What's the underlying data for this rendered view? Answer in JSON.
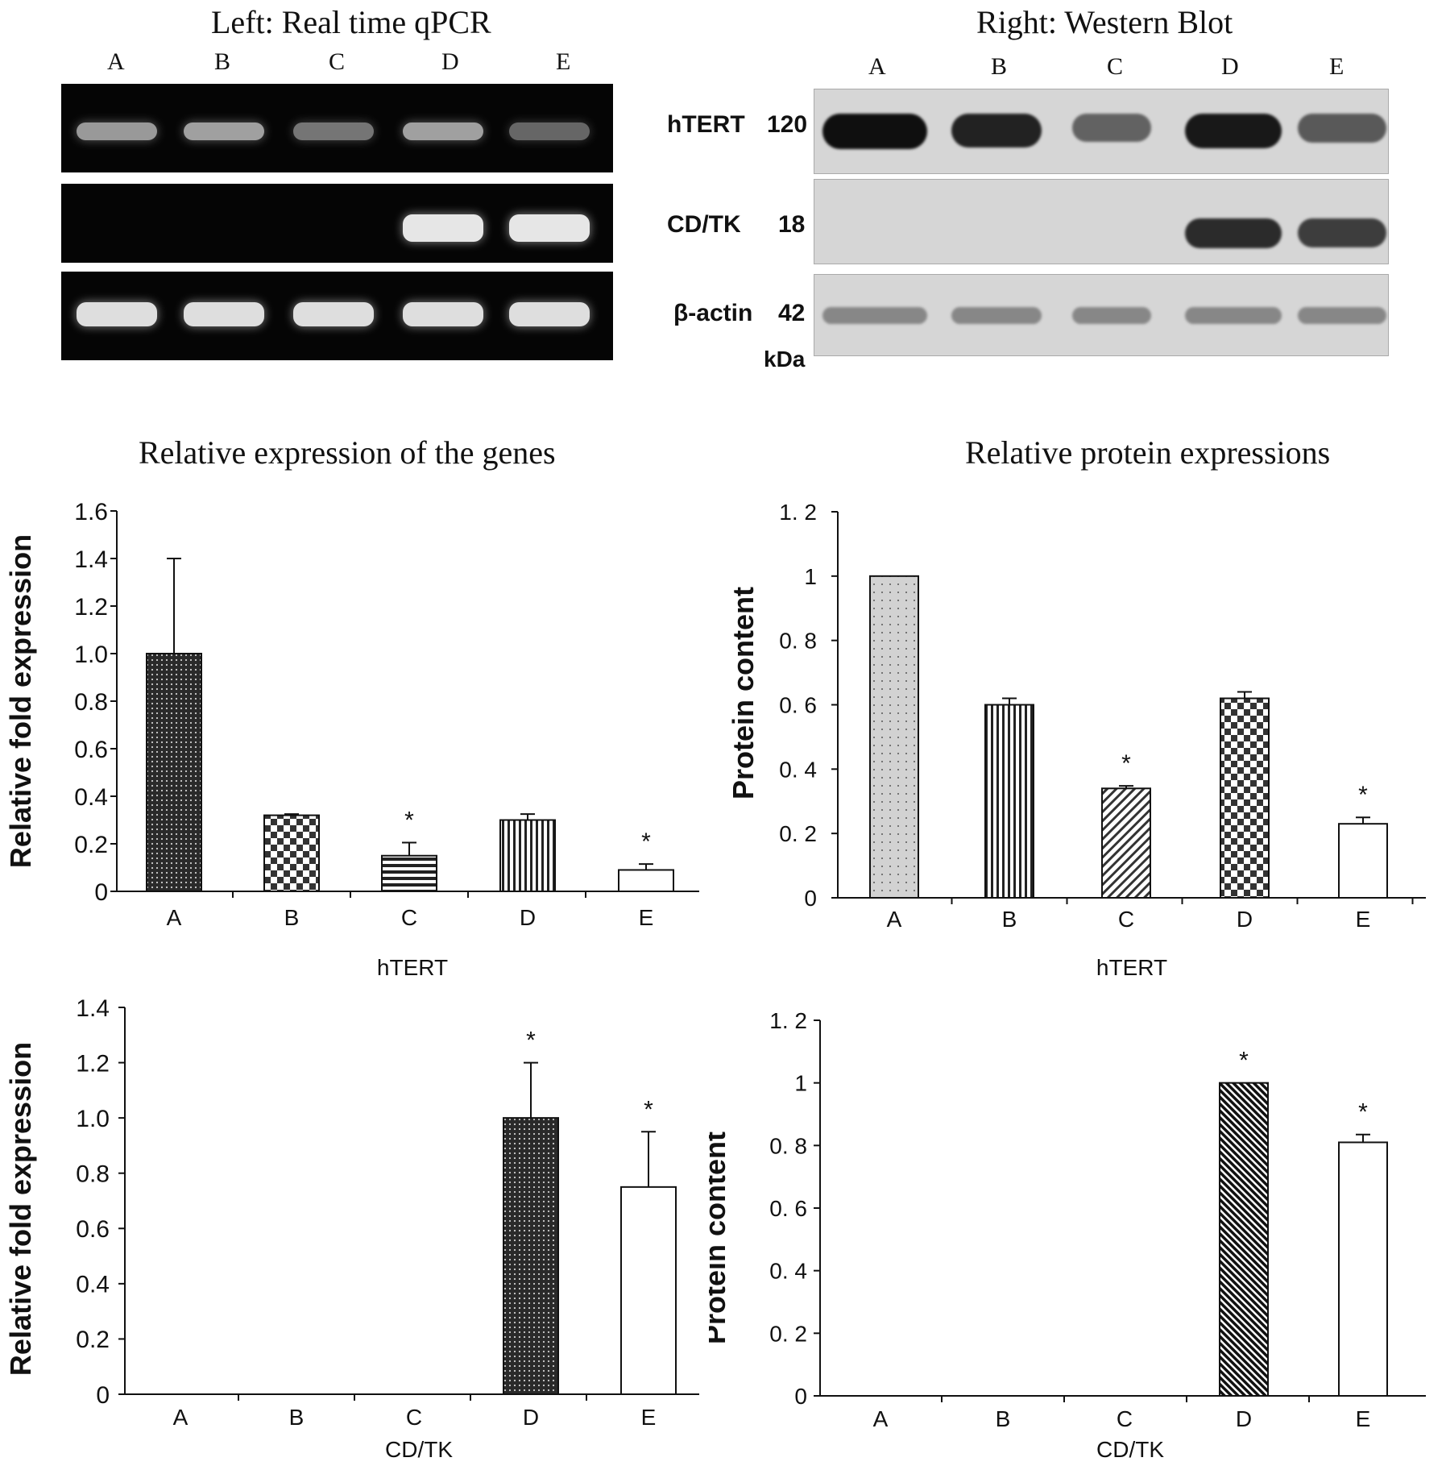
{
  "gel_panel": {
    "title": "Left: Real time qPCR",
    "lanes": [
      "A",
      "B",
      "C",
      "D",
      "E"
    ],
    "rows": [
      {
        "bands": [
          0.7,
          0.75,
          0.45,
          0.75,
          0.35
        ]
      },
      {
        "bands": [
          0,
          0,
          0,
          1,
          1
        ]
      },
      {
        "bands": [
          0.95,
          0.95,
          0.95,
          0.95,
          0.95
        ]
      }
    ]
  },
  "blot_panel": {
    "title": "Right: Western Blot",
    "lanes": [
      "A",
      "B",
      "C",
      "D",
      "E"
    ],
    "unit": "kDa",
    "rows": [
      {
        "name": "hTERT",
        "size": "120",
        "bands": [
          1,
          0.9,
          0.55,
          0.95,
          0.6
        ]
      },
      {
        "name": "CD/TK",
        "size": "18",
        "bands": [
          0,
          0,
          0,
          0.85,
          0.75
        ]
      },
      {
        "name": "β-actin",
        "size": "42",
        "bands": [
          0.35,
          0.35,
          0.35,
          0.35,
          0.35
        ]
      }
    ]
  },
  "section_titles": {
    "genes": "Relative expression of the genes",
    "proteins": "Relative protein expressions"
  },
  "chart_data": [
    {
      "id": "qpcr-htert",
      "type": "bar",
      "categories": [
        "A",
        "B",
        "C",
        "D",
        "E"
      ],
      "values": [
        1.0,
        0.32,
        0.15,
        0.3,
        0.09
      ],
      "errors": [
        0.4,
        0.005,
        0.055,
        0.025,
        0.025
      ],
      "significance": [
        "",
        "",
        "*",
        "",
        "*"
      ],
      "patterns": [
        "dense-dots",
        "checker",
        "hstripes",
        "vstripes",
        "none"
      ],
      "title": "",
      "xlabel": "hTERT",
      "ylabel": "Relative fold expression",
      "ylim": [
        0,
        1.6
      ],
      "yticks": [
        "0",
        "0.2",
        "0.4",
        "0.6",
        "0.8",
        "1.0",
        "1.2",
        "1.4",
        "1.6"
      ],
      "grid": false
    },
    {
      "id": "wb-htert",
      "type": "bar",
      "categories": [
        "A",
        "B",
        "C",
        "D",
        "E"
      ],
      "values": [
        1.0,
        0.6,
        0.34,
        0.62,
        0.23
      ],
      "errors": [
        0,
        0.02,
        0.008,
        0.02,
        0.02
      ],
      "significance": [
        "",
        "",
        "*",
        "",
        "*"
      ],
      "patterns": [
        "light-dots",
        "vstripes",
        "diag",
        "checker",
        "none"
      ],
      "title": "",
      "xlabel": "hTERT",
      "ylabel": "Protein content",
      "ylim": [
        0,
        1.2
      ],
      "yticks": [
        "0",
        "0. 2",
        "0. 4",
        "0. 6",
        "0. 8",
        "1",
        "1. 2"
      ],
      "grid": false
    },
    {
      "id": "qpcr-cdtk",
      "type": "bar",
      "categories": [
        "A",
        "B",
        "C",
        "D",
        "E"
      ],
      "values": [
        0,
        0,
        0,
        1.0,
        0.75
      ],
      "errors": [
        0,
        0,
        0,
        0.2,
        0.2
      ],
      "significance": [
        "",
        "",
        "",
        "*",
        "*"
      ],
      "patterns": [
        "none",
        "none",
        "none",
        "dense-dots",
        "none"
      ],
      "title": "",
      "xlabel": "CD/TK",
      "ylabel": "Relative fold expression",
      "ylim": [
        0,
        1.4
      ],
      "yticks": [
        "0",
        "0.2",
        "0.4",
        "0.6",
        "0.8",
        "1.0",
        "1.2",
        "1.4"
      ],
      "grid": false
    },
    {
      "id": "wb-cdtk",
      "type": "bar",
      "categories": [
        "A",
        "B",
        "C",
        "D",
        "E"
      ],
      "values": [
        0,
        0,
        0,
        1.0,
        0.81
      ],
      "errors": [
        0,
        0,
        0,
        0,
        0.025
      ],
      "significance": [
        "",
        "",
        "",
        "*",
        "*"
      ],
      "patterns": [
        "none",
        "none",
        "none",
        "diag-dense",
        "none"
      ],
      "title": "",
      "xlabel": "CD/TK",
      "ylabel": "Protein content",
      "ylim": [
        0,
        1.2
      ],
      "yticks": [
        "0",
        "0. 2",
        "0. 4",
        "0. 6",
        "0. 8",
        "1",
        "1. 2"
      ],
      "grid": false
    }
  ]
}
